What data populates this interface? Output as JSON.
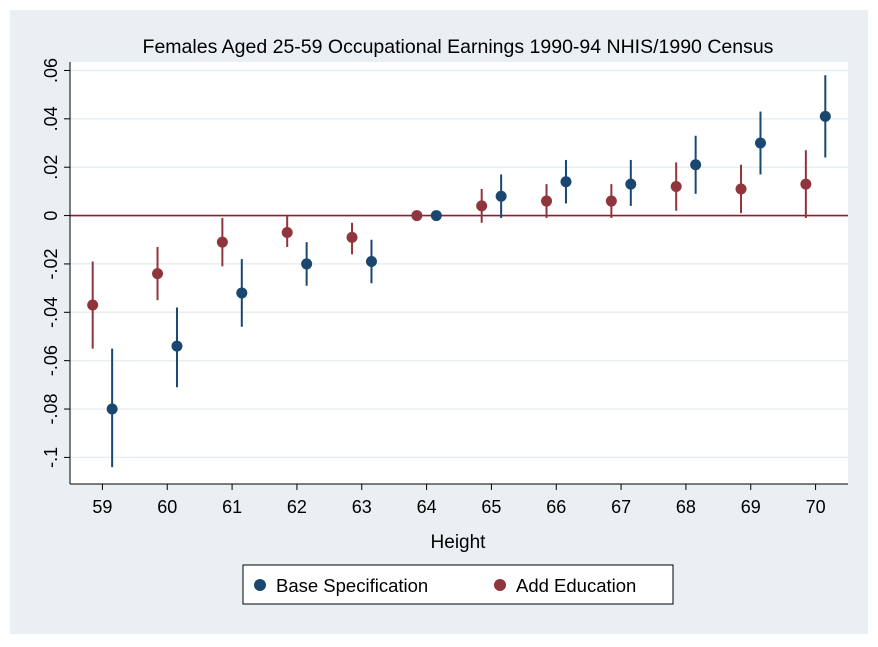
{
  "chart_data": {
    "type": "scatter",
    "title": "Females Aged 25-59 Occupational Earnings 1990-94 NHIS/1990 Census",
    "xlabel": "Height",
    "ylabel": "",
    "x_ticks": [
      "59",
      "60",
      "61",
      "62",
      "63",
      "64",
      "65",
      "66",
      "67",
      "68",
      "69",
      "70"
    ],
    "y_ticks": [
      ".06",
      ".04",
      ".02",
      "0",
      "-.02",
      "-.04",
      "-.06",
      "-.08",
      "-.1"
    ],
    "y_tick_values": [
      0.06,
      0.04,
      0.02,
      0,
      -0.02,
      -0.04,
      -0.06,
      -0.08,
      -0.1
    ],
    "ylim": [
      -0.111,
      0.0635
    ],
    "xlim": [
      58.5,
      70.5
    ],
    "grid": true,
    "reference_line": 0,
    "legend_position": "bottom",
    "colors": {
      "plot_bg": "#ffffff",
      "outer_bg": "#e9eff2",
      "grid": "#e7eef1",
      "reference": "#8f1d2f"
    },
    "series": [
      {
        "name": "Base Specification",
        "color": "#1a476f",
        "offset": 0.15,
        "points": [
          {
            "x": 59,
            "y": -0.08,
            "lo": -0.104,
            "hi": -0.055
          },
          {
            "x": 60,
            "y": -0.054,
            "lo": -0.071,
            "hi": -0.038
          },
          {
            "x": 61,
            "y": -0.032,
            "lo": -0.046,
            "hi": -0.018
          },
          {
            "x": 62,
            "y": -0.02,
            "lo": -0.029,
            "hi": -0.011
          },
          {
            "x": 63,
            "y": -0.019,
            "lo": -0.028,
            "hi": -0.01
          },
          {
            "x": 64,
            "y": 0.0,
            "lo": 0.0,
            "hi": 0.0
          },
          {
            "x": 65,
            "y": 0.008,
            "lo": -0.001,
            "hi": 0.017
          },
          {
            "x": 66,
            "y": 0.014,
            "lo": 0.005,
            "hi": 0.023
          },
          {
            "x": 67,
            "y": 0.013,
            "lo": 0.004,
            "hi": 0.023
          },
          {
            "x": 68,
            "y": 0.021,
            "lo": 0.009,
            "hi": 0.033
          },
          {
            "x": 69,
            "y": 0.03,
            "lo": 0.017,
            "hi": 0.043
          },
          {
            "x": 70,
            "y": 0.041,
            "lo": 0.024,
            "hi": 0.058
          }
        ]
      },
      {
        "name": "Add Education",
        "color": "#90353b",
        "offset": -0.15,
        "points": [
          {
            "x": 59,
            "y": -0.037,
            "lo": -0.055,
            "hi": -0.019
          },
          {
            "x": 60,
            "y": -0.024,
            "lo": -0.035,
            "hi": -0.013
          },
          {
            "x": 61,
            "y": -0.011,
            "lo": -0.021,
            "hi": -0.001
          },
          {
            "x": 62,
            "y": -0.007,
            "lo": -0.013,
            "hi": 0.0
          },
          {
            "x": 63,
            "y": -0.009,
            "lo": -0.016,
            "hi": -0.003
          },
          {
            "x": 64,
            "y": 0.0,
            "lo": 0.0,
            "hi": 0.0
          },
          {
            "x": 65,
            "y": 0.004,
            "lo": -0.003,
            "hi": 0.011
          },
          {
            "x": 66,
            "y": 0.006,
            "lo": -0.001,
            "hi": 0.013
          },
          {
            "x": 67,
            "y": 0.006,
            "lo": -0.001,
            "hi": 0.013
          },
          {
            "x": 68,
            "y": 0.012,
            "lo": 0.002,
            "hi": 0.022
          },
          {
            "x": 69,
            "y": 0.011,
            "lo": 0.001,
            "hi": 0.021
          },
          {
            "x": 70,
            "y": 0.013,
            "lo": -0.001,
            "hi": 0.027
          }
        ]
      }
    ]
  }
}
